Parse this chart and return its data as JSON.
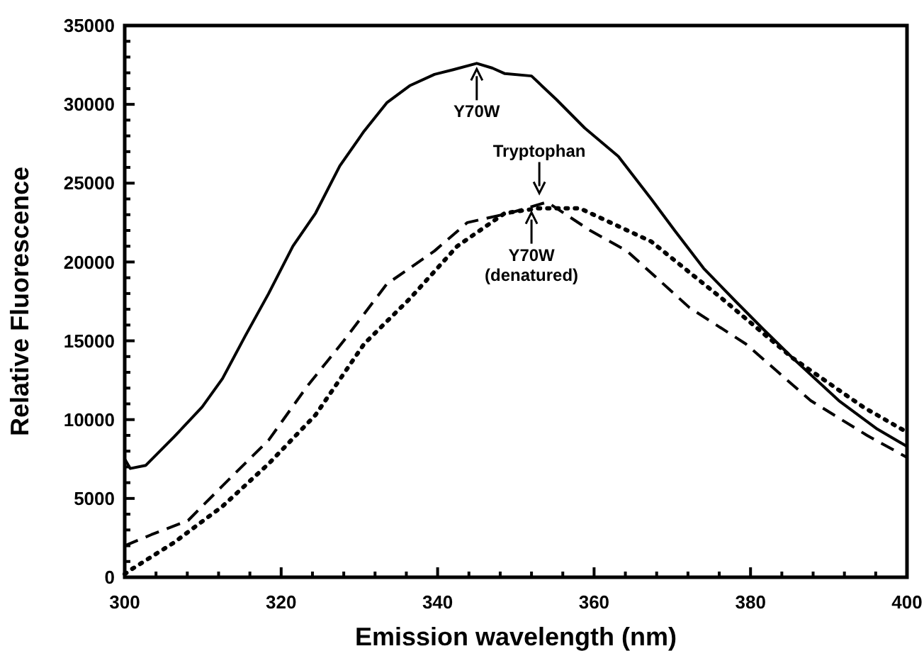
{
  "chart_data": {
    "type": "line",
    "xlabel": "Emission wavelength (nm)",
    "ylabel": "Relative Fluorescence",
    "xlim": [
      300,
      400
    ],
    "ylim": [
      0,
      35000
    ],
    "xticks": [
      300,
      {
        "value": 304,
        "label": null
      },
      {
        "value": 308,
        "label": null
      },
      {
        "value": 312,
        "label": null
      },
      {
        "value": 316,
        "label": null
      },
      320,
      {
        "value": 324,
        "label": null
      },
      {
        "value": 328,
        "label": null
      },
      {
        "value": 332,
        "label": null
      },
      {
        "value": 336,
        "label": null
      },
      340,
      {
        "value": 344,
        "label": null
      },
      {
        "value": 348,
        "label": null
      },
      {
        "value": 352,
        "label": null
      },
      {
        "value": 356,
        "label": null
      },
      360,
      {
        "value": 364,
        "label": null
      },
      {
        "value": 368,
        "label": null
      },
      {
        "value": 372,
        "label": null
      },
      {
        "value": 376,
        "label": null
      },
      380,
      {
        "value": 384,
        "label": null
      },
      {
        "value": 388,
        "label": null
      },
      {
        "value": 392,
        "label": null
      },
      {
        "value": 396,
        "label": null
      },
      400
    ],
    "yticks": [
      0,
      {
        "value": 1000,
        "label": null
      },
      {
        "value": 2000,
        "label": null
      },
      {
        "value": 3000,
        "label": null
      },
      {
        "value": 4000,
        "label": null
      },
      5000,
      {
        "value": 6000,
        "label": null
      },
      {
        "value": 7000,
        "label": null
      },
      {
        "value": 8000,
        "label": null
      },
      {
        "value": 9000,
        "label": null
      },
      10000,
      {
        "value": 11000,
        "label": null
      },
      {
        "value": 12000,
        "label": null
      },
      {
        "value": 13000,
        "label": null
      },
      {
        "value": 14000,
        "label": null
      },
      15000,
      {
        "value": 16000,
        "label": null
      },
      {
        "value": 17000,
        "label": null
      },
      {
        "value": 18000,
        "label": null
      },
      {
        "value": 19000,
        "label": null
      },
      20000,
      {
        "value": 21000,
        "label": null
      },
      {
        "value": 22000,
        "label": null
      },
      {
        "value": 23000,
        "label": null
      },
      {
        "value": 24000,
        "label": null
      },
      25000,
      {
        "value": 26000,
        "label": null
      },
      {
        "value": 27000,
        "label": null
      },
      {
        "value": 28000,
        "label": null
      },
      {
        "value": 29000,
        "label": null
      },
      30000,
      {
        "value": 31000,
        "label": null
      },
      {
        "value": 32000,
        "label": null
      },
      {
        "value": 33000,
        "label": null
      },
      {
        "value": 34000,
        "label": null
      },
      35000
    ],
    "grid": false,
    "series": [
      {
        "color": "#000000",
        "line_style": "solid",
        "x": [
          300,
          300.7,
          302.7,
          306.3,
          309.9,
          312.5,
          315.4,
          318.4,
          321.5,
          324.4,
          327.5,
          330.6,
          333.5,
          336.5,
          339.6,
          342,
          345,
          347,
          348.6,
          352,
          355.2,
          358.8,
          363.1,
          367.3,
          370.3,
          374,
          378.1,
          381.7,
          385.4,
          391.3,
          396.2,
          400
        ],
        "values": [
          7500,
          6900,
          7100,
          8900,
          10800,
          12600,
          15300,
          18000,
          21000,
          23100,
          26100,
          28300,
          30100,
          31200,
          31900,
          32200,
          32600,
          32300,
          31950,
          31800,
          30300,
          28500,
          26700,
          24000,
          22000,
          19600,
          17500,
          15700,
          13900,
          11200,
          9400,
          8300
        ]
      },
      {
        "color": "#000000",
        "line_style": "dashed",
        "x": [
          300,
          303.4,
          308.1,
          312.5,
          318.4,
          323.3,
          328,
          333.5,
          339.6,
          343.8,
          349.2,
          354,
          359.5,
          364.2,
          372.2,
          379.4,
          387.7,
          394.9,
          400
        ],
        "values": [
          2000,
          2700,
          3600,
          5800,
          8700,
          12100,
          15000,
          18600,
          20700,
          22500,
          23100,
          23800,
          22000,
          20700,
          17100,
          14800,
          11200,
          9000,
          7600
        ]
      },
      {
        "color": "#000000",
        "line_style": "dotted",
        "x": [
          300,
          300.7,
          306.3,
          312.5,
          318.4,
          324.4,
          330.6,
          336.5,
          342.5,
          348.6,
          352.8,
          358.2,
          367.3,
          376.3,
          385.4,
          394.4,
          400
        ],
        "values": [
          200,
          450,
          2200,
          4500,
          7200,
          10300,
          14800,
          17700,
          21000,
          23100,
          23400,
          23400,
          21300,
          17700,
          13900,
          10800,
          9200
        ]
      }
    ],
    "annotations": [
      {
        "text": "Y70W",
        "x": 345,
        "y": 32600
      },
      {
        "text": "Tryptophan",
        "x": 353,
        "y": 24000
      },
      {
        "text": "Y70W\n(denatured)",
        "x": 352,
        "y": 23500
      }
    ]
  }
}
